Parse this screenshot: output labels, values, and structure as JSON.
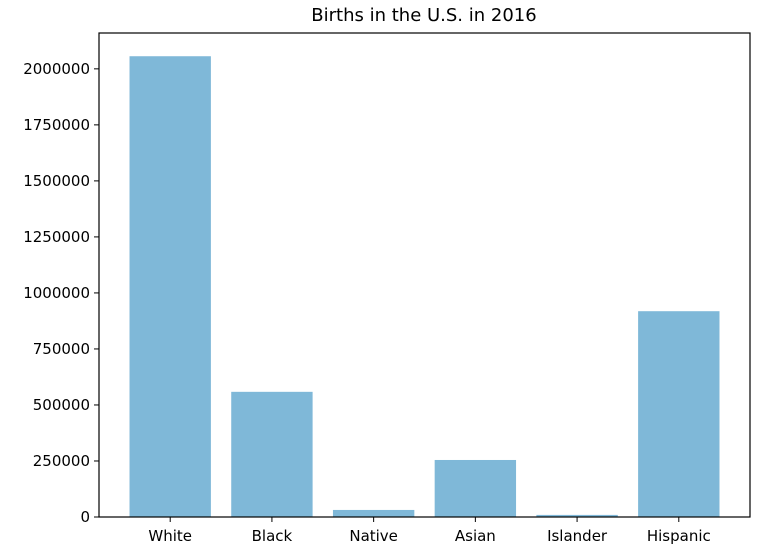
{
  "chart_data": {
    "type": "bar",
    "title": "Births in the U.S. in 2016",
    "xlabel": "",
    "ylabel": "",
    "categories": [
      "White",
      "Black",
      "Native",
      "Asian",
      "Islander",
      "Hispanic"
    ],
    "values": [
      2056332,
      558622,
      31452,
      254471,
      9342,
      918447
    ],
    "ylim": [
      0,
      2160000
    ],
    "yticks": [
      0,
      250000,
      500000,
      750000,
      1000000,
      1250000,
      1500000,
      1750000,
      2000000
    ],
    "ytick_labels": [
      "0",
      "250000",
      "500000",
      "750000",
      "1000000",
      "1250000",
      "1500000",
      "1750000",
      "2000000"
    ],
    "bar_color": "#7fb8d8",
    "grid": false,
    "legend": "none"
  }
}
